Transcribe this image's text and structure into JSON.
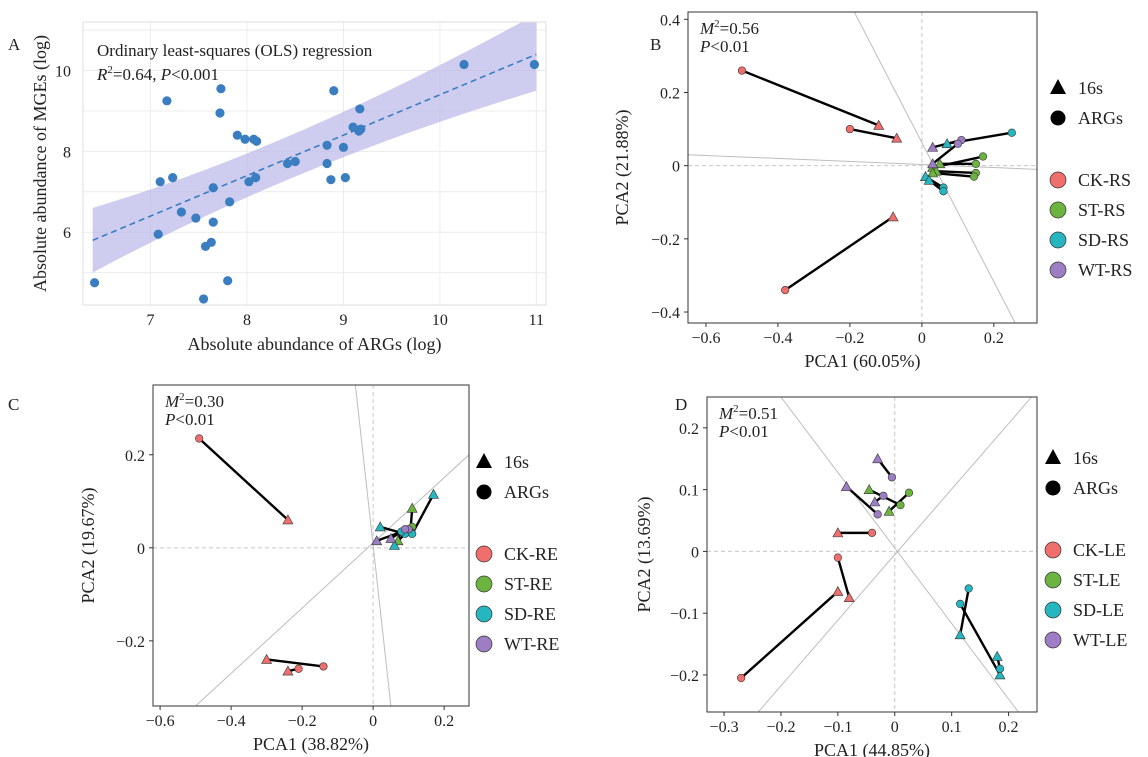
{
  "chart_data": [
    {
      "panel": "A",
      "type": "scatter",
      "title": "Ordinary least-squares (OLS) regression",
      "stat_r2": "=0.64, ",
      "stat_p": "<0.001",
      "xlabel": "Absolute abundance of ARGs (log)",
      "ylabel": "Absolute abundance of MGEs (log)",
      "xlim": [
        6.3,
        11.1
      ],
      "ylim": [
        4.2,
        11.2
      ],
      "xticks": [
        7,
        8,
        9,
        10,
        11
      ],
      "yticks": [
        6,
        8,
        10
      ],
      "grid": true,
      "point_color": "#3a7dc1",
      "band_color": "#b9b8e8",
      "fit": {
        "slope": 1.0,
        "intercept": -0.6,
        "x_from": 6.4,
        "x_to": 11.0
      },
      "band": {
        "lower_left": 5.0,
        "upper_left": 6.6,
        "lower_right": 9.5,
        "upper_right": 11.4
      },
      "points": [
        [
          6.42,
          4.75
        ],
        [
          7.08,
          5.95
        ],
        [
          7.1,
          7.25
        ],
        [
          7.17,
          9.25
        ],
        [
          7.23,
          7.35
        ],
        [
          7.32,
          6.5
        ],
        [
          7.47,
          6.35
        ],
        [
          7.55,
          4.35
        ],
        [
          7.57,
          5.65
        ],
        [
          7.63,
          5.75
        ],
        [
          7.65,
          6.25
        ],
        [
          7.65,
          7.1
        ],
        [
          7.72,
          8.95
        ],
        [
          7.73,
          9.55
        ],
        [
          7.8,
          4.8
        ],
        [
          7.82,
          6.75
        ],
        [
          7.9,
          8.4
        ],
        [
          7.98,
          8.3
        ],
        [
          8.02,
          7.25
        ],
        [
          8.07,
          8.3
        ],
        [
          8.1,
          8.25
        ],
        [
          8.09,
          7.35
        ],
        [
          8.42,
          7.7
        ],
        [
          8.5,
          7.75
        ],
        [
          8.83,
          7.7
        ],
        [
          8.83,
          8.15
        ],
        [
          8.87,
          7.3
        ],
        [
          8.9,
          9.5
        ],
        [
          9.0,
          8.1
        ],
        [
          9.02,
          7.35
        ],
        [
          9.1,
          8.6
        ],
        [
          9.16,
          8.5
        ],
        [
          9.18,
          8.55
        ],
        [
          9.17,
          9.05
        ],
        [
          10.25,
          10.15
        ],
        [
          10.98,
          10.15
        ]
      ]
    },
    {
      "panel": "B",
      "type": "scatter",
      "stat_m2": "=0.56",
      "stat_p": "<0.01",
      "xlabel": "PCA1 (60.05%)",
      "ylabel": "PCA2 (21.88%)",
      "xlim": [
        -0.65,
        0.32
      ],
      "ylim": [
        -0.43,
        0.42
      ],
      "xticks": [
        -0.6,
        -0.4,
        -0.2,
        0,
        0.2
      ],
      "yticks": [
        -0.4,
        -0.2,
        0,
        0.2,
        0.4
      ],
      "xtick_labels": [
        "−0.6",
        "−0.4",
        "−0.2",
        "0",
        "0.2"
      ],
      "ytick_labels": [
        "−0.4",
        "−0.2",
        "0",
        "0.2",
        "0.4"
      ],
      "legend": {
        "shapes": [
          "16s",
          "ARGs"
        ],
        "groups": [
          "CK-RS",
          "ST-RS",
          "SD-RS",
          "WT-RS"
        ]
      },
      "rot_lines": [
        [
          -0.65,
          0.03,
          0.32,
          -0.01
        ],
        [
          -0.23,
          0.5,
          0.27,
          -0.45
        ]
      ],
      "pairs": [
        {
          "g": 0,
          "c": [
            -0.5,
            0.26
          ],
          "t": [
            -0.12,
            0.11
          ]
        },
        {
          "g": 0,
          "c": [
            -0.2,
            0.1
          ],
          "t": [
            -0.07,
            0.075
          ]
        },
        {
          "g": 0,
          "c": [
            -0.38,
            -0.34
          ],
          "t": [
            -0.08,
            -0.14
          ]
        },
        {
          "g": 1,
          "c": [
            0.17,
            0.025
          ],
          "t": [
            0.03,
            -0.005
          ]
        },
        {
          "g": 1,
          "c": [
            0.15,
            0.005
          ],
          "t": [
            0.05,
            0.005
          ]
        },
        {
          "g": 1,
          "c": [
            0.15,
            -0.02
          ],
          "t": [
            0.04,
            -0.015
          ]
        },
        {
          "g": 1,
          "c": [
            0.145,
            -0.03
          ],
          "t": [
            0.03,
            -0.02
          ]
        },
        {
          "g": 2,
          "c": [
            0.25,
            0.09
          ],
          "t": [
            0.07,
            0.06
          ]
        },
        {
          "g": 2,
          "c": [
            0.06,
            -0.06
          ],
          "t": [
            0.01,
            -0.03
          ]
        },
        {
          "g": 2,
          "c": [
            0.06,
            -0.07
          ],
          "t": [
            0.02,
            -0.04
          ]
        },
        {
          "g": 3,
          "c": [
            0.11,
            0.07
          ],
          "t": [
            0.03,
            0.05
          ]
        },
        {
          "g": 3,
          "c": [
            0.1,
            0.06
          ],
          "t": [
            0.03,
            0.005
          ]
        }
      ]
    },
    {
      "panel": "C",
      "type": "scatter",
      "stat_m2": "=0.30",
      "stat_p": "<0.01",
      "xlabel": "PCA1 (38.82%)",
      "ylabel": "PCA2 (19.67%)",
      "xlim": [
        -0.62,
        0.27
      ],
      "ylim": [
        -0.34,
        0.35
      ],
      "xticks": [
        -0.6,
        -0.4,
        -0.2,
        0,
        0.2
      ],
      "yticks": [
        -0.2,
        0,
        0.2
      ],
      "xtick_labels": [
        "−0.6",
        "−0.4",
        "−0.2",
        "0",
        "0.2"
      ],
      "ytick_labels": [
        "−0.2",
        "0",
        "0.2"
      ],
      "legend": {
        "shapes": [
          "16s",
          "ARGs"
        ],
        "groups": [
          "CK-RE",
          "ST-RE",
          "SD-RE",
          "WT-RE"
        ]
      },
      "rot_lines": [
        [
          -0.5,
          -0.34,
          0.27,
          0.2
        ],
        [
          -0.05,
          0.35,
          0.05,
          -0.34
        ]
      ],
      "pairs": [
        {
          "g": 0,
          "c": [
            -0.49,
            0.235
          ],
          "t": [
            -0.24,
            0.06
          ]
        },
        {
          "g": 0,
          "c": [
            -0.14,
            -0.255
          ],
          "t": [
            -0.3,
            -0.24
          ]
        },
        {
          "g": 0,
          "c": [
            -0.21,
            -0.26
          ],
          "t": [
            -0.24,
            -0.265
          ]
        },
        {
          "g": 1,
          "c": [
            0.11,
            0.045
          ],
          "t": [
            0.07,
            0.015
          ]
        },
        {
          "g": 1,
          "c": [
            0.105,
            0.035
          ],
          "t": [
            0.11,
            0.085
          ]
        },
        {
          "g": 2,
          "c": [
            0.11,
            0.03
          ],
          "t": [
            0.17,
            0.115
          ]
        },
        {
          "g": 2,
          "c": [
            0.09,
            0.03
          ],
          "t": [
            0.02,
            0.045
          ]
        },
        {
          "g": 2,
          "c": [
            0.08,
            0.035
          ],
          "t": [
            0.06,
            0.005
          ]
        },
        {
          "g": 3,
          "c": [
            0.1,
            0.04
          ],
          "t": [
            0.01,
            0.015
          ]
        },
        {
          "g": 3,
          "c": [
            0.09,
            0.04
          ],
          "t": [
            0.05,
            0.02
          ]
        }
      ]
    },
    {
      "panel": "D",
      "type": "scatter",
      "stat_m2": "=0.51",
      "stat_p": "<0.01",
      "xlabel": "PCA1 (44.85%)",
      "ylabel": "PCA2 (13.69%)",
      "xlim": [
        -0.33,
        0.25
      ],
      "ylim": [
        -0.26,
        0.25
      ],
      "xticks": [
        -0.3,
        -0.2,
        -0.1,
        0,
        0.1,
        0.2
      ],
      "yticks": [
        -0.2,
        -0.1,
        0,
        0.1,
        0.2
      ],
      "xtick_labels": [
        "−0.3",
        "−0.2",
        "−0.1",
        "0",
        "0.1",
        "0.2"
      ],
      "ytick_labels": [
        "−0.2",
        "−0.1",
        "0",
        "0.1",
        "0.2"
      ],
      "legend": {
        "shapes": [
          "16s",
          "ARGs"
        ],
        "groups": [
          "CK-LE",
          "ST-LE",
          "SD-LE",
          "WT-LE"
        ]
      },
      "rot_lines": [
        [
          -0.24,
          -0.26,
          0.25,
          0.26
        ],
        [
          -0.2,
          0.25,
          0.25,
          -0.3
        ]
      ],
      "pairs": [
        {
          "g": 0,
          "c": [
            -0.27,
            -0.205
          ],
          "t": [
            -0.1,
            -0.065
          ]
        },
        {
          "g": 0,
          "c": [
            -0.1,
            -0.01
          ],
          "t": [
            -0.08,
            -0.075
          ]
        },
        {
          "g": 0,
          "c": [
            -0.04,
            0.03
          ],
          "t": [
            -0.1,
            0.03
          ]
        },
        {
          "g": 1,
          "c": [
            0.025,
            0.095
          ],
          "t": [
            -0.01,
            0.065
          ]
        },
        {
          "g": 1,
          "c": [
            0.01,
            0.075
          ],
          "t": [
            -0.045,
            0.1
          ]
        },
        {
          "g": 2,
          "c": [
            0.13,
            -0.06
          ],
          "t": [
            0.115,
            -0.135
          ]
        },
        {
          "g": 2,
          "c": [
            0.115,
            -0.085
          ],
          "t": [
            0.185,
            -0.2
          ]
        },
        {
          "g": 2,
          "c": [
            0.185,
            -0.19
          ],
          "t": [
            0.18,
            -0.17
          ]
        },
        {
          "g": 3,
          "c": [
            -0.005,
            0.12
          ],
          "t": [
            -0.03,
            0.15
          ]
        },
        {
          "g": 3,
          "c": [
            -0.03,
            0.06
          ],
          "t": [
            -0.085,
            0.105
          ]
        },
        {
          "g": 3,
          "c": [
            -0.02,
            0.09
          ],
          "t": [
            -0.035,
            0.08
          ]
        }
      ]
    }
  ],
  "group_colors": [
    "#ee6f6c",
    "#6db33f",
    "#26b6bf",
    "#9d7ec4"
  ]
}
